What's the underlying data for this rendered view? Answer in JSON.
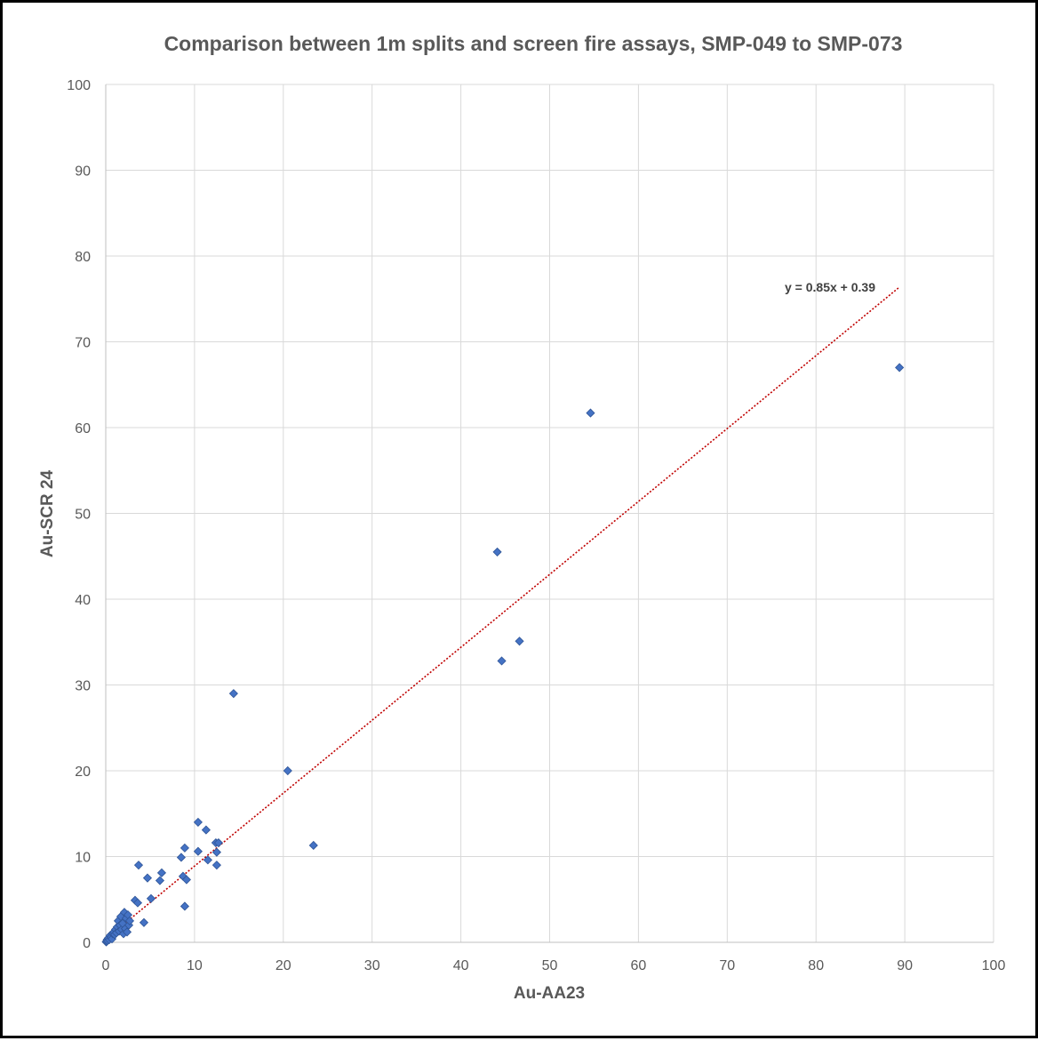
{
  "chart_data": {
    "type": "scatter",
    "title": "Comparison between 1m splits and screen fire assays, SMP-049 to SMP-073",
    "xlabel": "Au-AA23",
    "ylabel": "Au-SCR 24",
    "xlim": [
      0,
      100
    ],
    "ylim": [
      0,
      100
    ],
    "xticks": [
      "0",
      "10",
      "20",
      "30",
      "40",
      "50",
      "60",
      "70",
      "80",
      "90",
      "100"
    ],
    "yticks": [
      "0",
      "10",
      "20",
      "30",
      "40",
      "50",
      "60",
      "70",
      "80",
      "90",
      "100"
    ],
    "grid": true,
    "legend": "none",
    "series": [
      {
        "marker_color": "#4472C4",
        "points": [
          [
            0.05,
            0.05
          ],
          [
            0.1,
            0.1
          ],
          [
            0.15,
            0.3
          ],
          [
            0.2,
            0.2
          ],
          [
            0.3,
            0.5
          ],
          [
            0.4,
            0.3
          ],
          [
            0.5,
            0.8
          ],
          [
            0.6,
            0.6
          ],
          [
            0.7,
            0.4
          ],
          [
            0.8,
            1.0
          ],
          [
            0.9,
            1.2
          ],
          [
            1.0,
            0.9
          ],
          [
            1.1,
            1.5
          ],
          [
            1.2,
            1.1
          ],
          [
            1.3,
            1.8
          ],
          [
            1.4,
            2.5
          ],
          [
            1.5,
            1.3
          ],
          [
            1.6,
            2.0
          ],
          [
            1.7,
            3.0
          ],
          [
            1.8,
            1.5
          ],
          [
            1.9,
            2.2
          ],
          [
            2.0,
            1.0
          ],
          [
            2.1,
            3.5
          ],
          [
            2.2,
            1.6
          ],
          [
            2.3,
            2.8
          ],
          [
            2.4,
            1.2
          ],
          [
            2.5,
            3.2
          ],
          [
            2.6,
            2.0
          ],
          [
            2.7,
            2.5
          ],
          [
            3.3,
            4.9
          ],
          [
            3.6,
            4.6
          ],
          [
            3.7,
            9.0
          ],
          [
            4.3,
            2.3
          ],
          [
            4.7,
            7.5
          ],
          [
            5.1,
            5.1
          ],
          [
            6.1,
            7.2
          ],
          [
            6.3,
            8.1
          ],
          [
            8.5,
            9.9
          ],
          [
            8.7,
            7.7
          ],
          [
            8.9,
            4.2
          ],
          [
            8.9,
            11.0
          ],
          [
            9.1,
            7.3
          ],
          [
            10.4,
            14.0
          ],
          [
            10.4,
            10.6
          ],
          [
            11.3,
            13.1
          ],
          [
            11.5,
            9.6
          ],
          [
            12.4,
            11.6
          ],
          [
            12.5,
            10.5
          ],
          [
            12.5,
            9.0
          ],
          [
            12.7,
            11.6
          ],
          [
            14.4,
            29.0
          ],
          [
            20.5,
            20.0
          ],
          [
            23.4,
            11.3
          ],
          [
            44.1,
            45.5
          ],
          [
            44.6,
            32.8
          ],
          [
            46.6,
            35.1
          ],
          [
            54.6,
            61.7
          ],
          [
            89.4,
            67.0
          ]
        ]
      }
    ],
    "trendline": {
      "type": "linear",
      "slope": 0.85,
      "intercept": 0.39,
      "x_range": [
        0,
        89.4
      ],
      "equation_label": "y = 0.85x + 0.39",
      "color": "#C00000"
    }
  }
}
